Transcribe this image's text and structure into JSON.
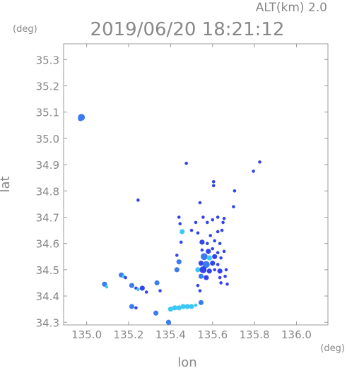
{
  "header": {
    "alt_label": "ALT(km) 2.0",
    "timestamp": "2019/06/20 18:21:12"
  },
  "chart_data": {
    "type": "scatter",
    "title": "2019/06/20 18:21:12",
    "xlabel": "lon",
    "ylabel": "lat",
    "x_unit": "(deg)",
    "y_unit": "(deg)",
    "xlim": [
      134.89,
      136.15
    ],
    "ylim": [
      34.29,
      35.36
    ],
    "xticks": [
      "135.0",
      "135.2",
      "135.4",
      "135.6",
      "135.8",
      "136.0"
    ],
    "xtick_values": [
      135.0,
      135.2,
      135.4,
      135.6,
      135.8,
      136.0
    ],
    "yticks": [
      "34.3",
      "34.4",
      "34.5",
      "34.6",
      "34.7",
      "34.8",
      "34.9",
      "35.0",
      "35.1",
      "35.2",
      "35.3"
    ],
    "ytick_values": [
      34.3,
      34.4,
      34.5,
      34.6,
      34.7,
      34.8,
      34.9,
      35.0,
      35.1,
      35.2,
      35.3
    ],
    "grid": false,
    "colors": {
      "deep": "#3344ee",
      "mid": "#3b7cf0",
      "light": "#3cc8f5"
    },
    "points": [
      {
        "x": 134.975,
        "y": 35.08,
        "c": "mid",
        "s": 3
      },
      {
        "x": 134.97,
        "y": 35.075,
        "c": "mid",
        "s": 2
      },
      {
        "x": 135.475,
        "y": 34.905,
        "c": "deep",
        "s": 1
      },
      {
        "x": 135.795,
        "y": 34.875,
        "c": "deep",
        "s": 1
      },
      {
        "x": 135.825,
        "y": 34.91,
        "c": "deep",
        "s": 1
      },
      {
        "x": 135.605,
        "y": 34.835,
        "c": "deep",
        "s": 1
      },
      {
        "x": 135.605,
        "y": 34.82,
        "c": "deep",
        "s": 1
      },
      {
        "x": 135.705,
        "y": 34.8,
        "c": "deep",
        "s": 1
      },
      {
        "x": 135.245,
        "y": 34.765,
        "c": "deep",
        "s": 1
      },
      {
        "x": 135.54,
        "y": 34.755,
        "c": "deep",
        "s": 1
      },
      {
        "x": 135.7,
        "y": 34.74,
        "c": "deep",
        "s": 1
      },
      {
        "x": 135.44,
        "y": 34.7,
        "c": "deep",
        "s": 1
      },
      {
        "x": 135.445,
        "y": 34.675,
        "c": "deep",
        "s": 1
      },
      {
        "x": 135.52,
        "y": 34.68,
        "c": "deep",
        "s": 1
      },
      {
        "x": 135.555,
        "y": 34.7,
        "c": "deep",
        "s": 1
      },
      {
        "x": 135.575,
        "y": 34.68,
        "c": "deep",
        "s": 1
      },
      {
        "x": 135.6,
        "y": 34.69,
        "c": "deep",
        "s": 1
      },
      {
        "x": 135.625,
        "y": 34.7,
        "c": "deep",
        "s": 1
      },
      {
        "x": 135.65,
        "y": 34.68,
        "c": "deep",
        "s": 1
      },
      {
        "x": 135.655,
        "y": 34.695,
        "c": "deep",
        "s": 1
      },
      {
        "x": 135.455,
        "y": 34.645,
        "c": "light",
        "s": 2
      },
      {
        "x": 135.5,
        "y": 34.65,
        "c": "deep",
        "s": 1
      },
      {
        "x": 135.53,
        "y": 34.64,
        "c": "deep",
        "s": 1
      },
      {
        "x": 135.59,
        "y": 34.63,
        "c": "deep",
        "s": 1
      },
      {
        "x": 135.625,
        "y": 34.645,
        "c": "deep",
        "s": 1
      },
      {
        "x": 135.645,
        "y": 34.65,
        "c": "deep",
        "s": 1
      },
      {
        "x": 135.45,
        "y": 34.605,
        "c": "deep",
        "s": 1
      },
      {
        "x": 135.55,
        "y": 34.605,
        "c": "deep",
        "s": 2
      },
      {
        "x": 135.575,
        "y": 34.6,
        "c": "deep",
        "s": 1
      },
      {
        "x": 135.61,
        "y": 34.61,
        "c": "deep",
        "s": 1
      },
      {
        "x": 135.635,
        "y": 34.6,
        "c": "deep",
        "s": 1
      },
      {
        "x": 135.55,
        "y": 34.575,
        "c": "deep",
        "s": 1
      },
      {
        "x": 135.58,
        "y": 34.57,
        "c": "deep",
        "s": 2
      },
      {
        "x": 135.6,
        "y": 34.58,
        "c": "deep",
        "s": 1
      },
      {
        "x": 135.625,
        "y": 34.565,
        "c": "deep",
        "s": 1
      },
      {
        "x": 135.655,
        "y": 34.57,
        "c": "deep",
        "s": 1
      },
      {
        "x": 135.43,
        "y": 34.555,
        "c": "deep",
        "s": 1
      },
      {
        "x": 135.56,
        "y": 34.55,
        "c": "mid",
        "s": 3
      },
      {
        "x": 135.585,
        "y": 34.545,
        "c": "light",
        "s": 2
      },
      {
        "x": 135.61,
        "y": 34.55,
        "c": "deep",
        "s": 2
      },
      {
        "x": 135.64,
        "y": 34.545,
        "c": "deep",
        "s": 1
      },
      {
        "x": 135.44,
        "y": 34.53,
        "c": "mid",
        "s": 2
      },
      {
        "x": 135.545,
        "y": 34.525,
        "c": "deep",
        "s": 2
      },
      {
        "x": 135.57,
        "y": 34.52,
        "c": "mid",
        "s": 3
      },
      {
        "x": 135.6,
        "y": 34.525,
        "c": "deep",
        "s": 2
      },
      {
        "x": 135.625,
        "y": 34.52,
        "c": "deep",
        "s": 1
      },
      {
        "x": 135.43,
        "y": 34.5,
        "c": "mid",
        "s": 2
      },
      {
        "x": 135.53,
        "y": 34.5,
        "c": "light",
        "s": 2
      },
      {
        "x": 135.555,
        "y": 34.5,
        "c": "deep",
        "s": 3
      },
      {
        "x": 135.585,
        "y": 34.495,
        "c": "deep",
        "s": 2
      },
      {
        "x": 135.61,
        "y": 34.5,
        "c": "deep",
        "s": 1
      },
      {
        "x": 135.635,
        "y": 34.495,
        "c": "deep",
        "s": 2
      },
      {
        "x": 135.665,
        "y": 34.5,
        "c": "deep",
        "s": 1
      },
      {
        "x": 135.545,
        "y": 34.475,
        "c": "mid",
        "s": 2
      },
      {
        "x": 135.57,
        "y": 34.47,
        "c": "deep",
        "s": 2
      },
      {
        "x": 135.635,
        "y": 34.47,
        "c": "deep",
        "s": 1
      },
      {
        "x": 135.66,
        "y": 34.475,
        "c": "deep",
        "s": 1
      },
      {
        "x": 135.64,
        "y": 34.45,
        "c": "deep",
        "s": 1
      },
      {
        "x": 135.67,
        "y": 34.445,
        "c": "deep",
        "s": 1
      },
      {
        "x": 135.165,
        "y": 34.48,
        "c": "mid",
        "s": 2
      },
      {
        "x": 135.175,
        "y": 34.475,
        "c": "light",
        "s": 1
      },
      {
        "x": 135.185,
        "y": 34.47,
        "c": "deep",
        "s": 1
      },
      {
        "x": 135.085,
        "y": 34.445,
        "c": "mid",
        "s": 2
      },
      {
        "x": 135.095,
        "y": 34.435,
        "c": "light",
        "s": 1
      },
      {
        "x": 135.215,
        "y": 34.44,
        "c": "mid",
        "s": 2
      },
      {
        "x": 135.235,
        "y": 34.43,
        "c": "deep",
        "s": 1
      },
      {
        "x": 135.245,
        "y": 34.425,
        "c": "light",
        "s": 1
      },
      {
        "x": 135.265,
        "y": 34.43,
        "c": "deep",
        "s": 2
      },
      {
        "x": 135.285,
        "y": 34.415,
        "c": "deep",
        "s": 1
      },
      {
        "x": 135.335,
        "y": 34.45,
        "c": "mid",
        "s": 2
      },
      {
        "x": 135.35,
        "y": 34.42,
        "c": "deep",
        "s": 1
      },
      {
        "x": 135.53,
        "y": 34.44,
        "c": "deep",
        "s": 1
      },
      {
        "x": 135.54,
        "y": 34.42,
        "c": "deep",
        "s": 1
      },
      {
        "x": 135.215,
        "y": 34.36,
        "c": "mid",
        "s": 2
      },
      {
        "x": 135.235,
        "y": 34.355,
        "c": "deep",
        "s": 1
      },
      {
        "x": 135.33,
        "y": 34.335,
        "c": "mid",
        "s": 2
      },
      {
        "x": 135.4,
        "y": 34.35,
        "c": "light",
        "s": 2
      },
      {
        "x": 135.42,
        "y": 34.355,
        "c": "light",
        "s": 2
      },
      {
        "x": 135.44,
        "y": 34.355,
        "c": "light",
        "s": 2
      },
      {
        "x": 135.46,
        "y": 34.36,
        "c": "light",
        "s": 2
      },
      {
        "x": 135.48,
        "y": 34.36,
        "c": "light",
        "s": 2
      },
      {
        "x": 135.5,
        "y": 34.36,
        "c": "light",
        "s": 2
      },
      {
        "x": 135.52,
        "y": 34.365,
        "c": "light",
        "s": 1
      },
      {
        "x": 135.545,
        "y": 34.375,
        "c": "mid",
        "s": 2
      },
      {
        "x": 135.39,
        "y": 34.3,
        "c": "mid",
        "s": 2
      }
    ]
  }
}
